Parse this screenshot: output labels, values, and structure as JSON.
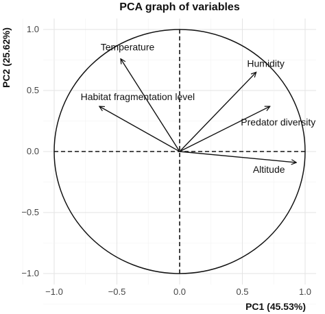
{
  "chart_data": {
    "type": "scatter",
    "title": "PCA graph of variables",
    "xlabel": "PC1 (45.53%)",
    "ylabel": "PC2 (25.62%)",
    "xlim": [
      -1.0,
      1.0
    ],
    "ylim": [
      -1.0,
      1.0
    ],
    "xticks": [
      -1.0,
      -0.5,
      0.0,
      0.5,
      1.0
    ],
    "yticks": [
      -1.0,
      -0.5,
      0.0,
      0.5,
      1.0
    ],
    "xtick_labels": [
      "−1.0",
      "−0.5",
      "0.0",
      "0.5",
      "1.0"
    ],
    "ytick_labels": [
      "−1.0",
      "−0.5",
      "0.0",
      "0.5",
      "1.0"
    ],
    "grid": true,
    "unit_circle": true,
    "variables": [
      {
        "name": "Temperature",
        "x": -0.47,
        "y": 0.76
      },
      {
        "name": "Humidity",
        "x": 0.61,
        "y": 0.65
      },
      {
        "name": "Habitat fragmentation level",
        "x": -0.64,
        "y": 0.37
      },
      {
        "name": "Predator diversity",
        "x": 0.72,
        "y": 0.37
      },
      {
        "name": "Altitude",
        "x": 0.93,
        "y": -0.09
      }
    ]
  }
}
